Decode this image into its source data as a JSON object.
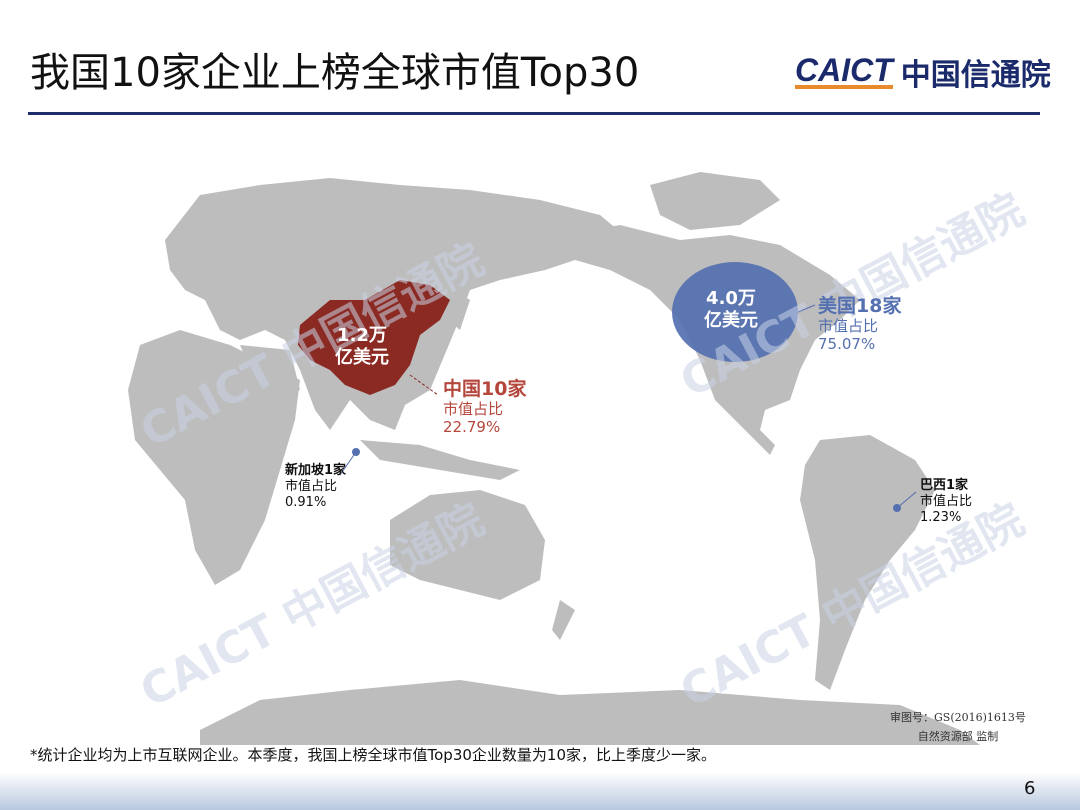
{
  "title": "我国10家企业上榜全球市值Top30",
  "logo": {
    "en": "CAICT",
    "cn": "中国信通院"
  },
  "watermark": "CAICT 中国信通院",
  "colors": {
    "land": "#bdbdbd",
    "china": "#8b2a22",
    "usa_bubble": "#5470b0",
    "rule": "#1f2d6b"
  },
  "china": {
    "bubble_value": "1.2万",
    "bubble_unit": "亿美元",
    "name": "中国10家",
    "share_label": "市值占比",
    "share": "22.79%"
  },
  "usa": {
    "bubble_value": "4.0万",
    "bubble_unit": "亿美元",
    "name": "美国18家",
    "share_label": "市值占比",
    "share": "75.07%"
  },
  "singapore": {
    "name": "新加坡1家",
    "share_label": "市值占比",
    "share": "0.91%"
  },
  "brazil": {
    "name": "巴西1家",
    "share_label": "市值占比",
    "share": "1.23%"
  },
  "footnote": "*统计企业均为上市互联网企业。本季度，我国上榜全球市值Top30企业数量为10家，比上季度少一家。",
  "map_approval": {
    "line1": "审图号：GS(2016)1613号",
    "line2": "自然资源部 监制"
  },
  "page_number": "6"
}
